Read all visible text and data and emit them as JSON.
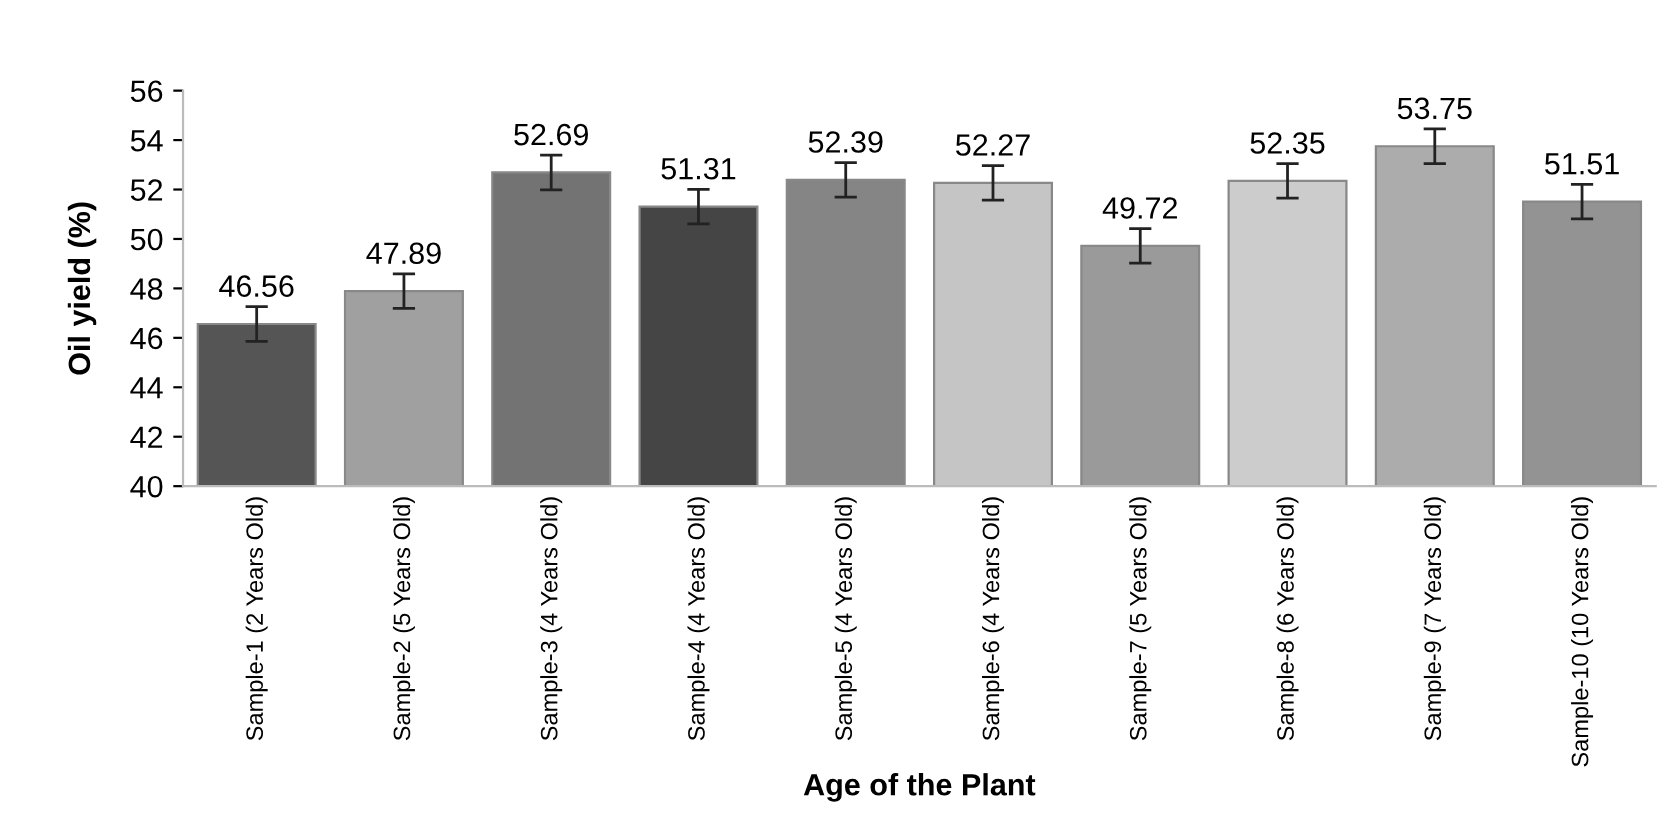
{
  "chart_data": {
    "type": "bar",
    "xlabel": "Age of the Plant",
    "ylabel": "Oil yield (%)",
    "categories": [
      "Sample-1 (2 Years Old)",
      "Sample-2 (5 Years Old)",
      "Sample-3 (4 Years Old)",
      "Sample-4 (4 Years Old)",
      "Sample-5 (4 Years Old)",
      "Sample-6 (4 Years Old)",
      "Sample-7 (5 Years Old)",
      "Sample-8 (6 Years Old)",
      "Sample-9 (7 Years Old)",
      "Sample-10 (10 Years Old)"
    ],
    "values": [
      46.56,
      47.89,
      52.69,
      51.31,
      52.39,
      52.27,
      49.72,
      52.35,
      53.75,
      51.51
    ],
    "errors": [
      0.7,
      0.7,
      0.7,
      0.7,
      0.7,
      0.7,
      0.7,
      0.7,
      0.7,
      0.7
    ],
    "colors": [
      "#555555",
      "#a0a0a0",
      "#737373",
      "#454545",
      "#858585",
      "#c5c5c5",
      "#9a9a9a",
      "#cccccc",
      "#acacac",
      "#939393"
    ],
    "data_labels": true,
    "ylim": [
      40,
      56
    ],
    "yticks": [
      40,
      42,
      44,
      46,
      48,
      50,
      52,
      54,
      56
    ],
    "grid": false,
    "legend": false
  }
}
